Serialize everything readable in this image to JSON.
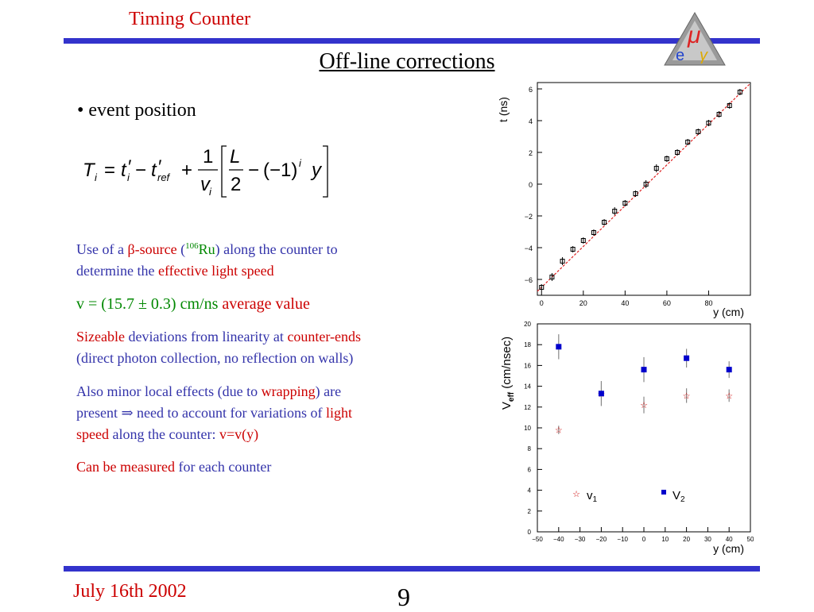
{
  "header": {
    "section_title": "Timing Counter",
    "logo_name": "meg-logo-icon"
  },
  "slide": {
    "title": "Off-line corrections",
    "bullet": "• event position",
    "formula": {
      "T": "T",
      "i": "i",
      "eq": "=",
      "t": "t",
      "prime": "′",
      "minus": "−",
      "ref": "ref",
      "plus": "+",
      "one": "1",
      "v": "v",
      "L": "L",
      "two": "2",
      "neg1": "(−1)",
      "y": "y"
    },
    "para1": {
      "a": "Use of a ",
      "b": "β-source",
      "c": " (",
      "d": "106",
      "e": "Ru",
      "f": ") along the counter to",
      "g": "determine the ",
      "h": "effective light speed"
    },
    "para2": {
      "a": "v = (15.7 ± 0.3) cm/ns  ",
      "b": "average value"
    },
    "para3": {
      "a": "Sizeable",
      "b": " deviations from linearity at ",
      "c": "counter-ends",
      "d": "(direct photon collection, no reflection on walls)"
    },
    "para4": {
      "a": "Also minor local effects (due to ",
      "b": "wrapping",
      "c": ") are",
      "d": "present ⇒ need to account for variations of ",
      "e": "light",
      "f": "speed",
      "g": " along the counter: ",
      "h": "v=v(y)"
    },
    "para5": {
      "a": "Can be measured",
      "b": " for each counter"
    }
  },
  "footer": {
    "date": "July 16th 2002",
    "page": "9"
  },
  "chart_data": [
    {
      "type": "scatter",
      "ylabel": "t (ns)",
      "xlabel": "y (cm)",
      "xlim": [
        -2,
        100
      ],
      "ylim": [
        -7,
        6.4
      ],
      "xticks": [
        0,
        20,
        40,
        60,
        80
      ],
      "yticks": [
        -6,
        -4,
        -2,
        0,
        2,
        4,
        6
      ],
      "ytick_labels": [
        "−6",
        "−4",
        "−2",
        "0",
        "2",
        "4",
        "6"
      ],
      "fit_line": {
        "x": [
          -2,
          100
        ],
        "y": [
          -6.75,
          6.35
        ],
        "color": "#dd2222"
      },
      "points": {
        "x": [
          0,
          5,
          10,
          15,
          20,
          25,
          30,
          35,
          40,
          45,
          50,
          55,
          60,
          65,
          70,
          75,
          80,
          85,
          90,
          95
        ],
        "y": [
          -6.5,
          -5.85,
          -4.85,
          -4.1,
          -3.55,
          -3.05,
          -2.4,
          -1.7,
          -1.2,
          -0.6,
          0.0,
          1.0,
          1.6,
          2.0,
          2.65,
          3.3,
          3.85,
          4.4,
          4.95,
          5.8
        ],
        "err": [
          0.2,
          0.25,
          0.25,
          0.2,
          0.2,
          0.2,
          0.2,
          0.25,
          0.2,
          0.2,
          0.25,
          0.25,
          0.2,
          0.2,
          0.2,
          0.2,
          0.2,
          0.2,
          0.2,
          0.2
        ]
      }
    },
    {
      "type": "scatter",
      "ylabel": "V_eff (cm/nsec)",
      "ylabel_main": "V",
      "ylabel_sub": "eff",
      "ylabel_rest": " (cm/nsec)",
      "xlabel": "y (cm)",
      "xlim": [
        -50,
        50
      ],
      "ylim": [
        0,
        20
      ],
      "xticks": [
        -50,
        -40,
        -30,
        -20,
        -10,
        0,
        10,
        20,
        30,
        40,
        50
      ],
      "xtick_labels": [
        "−50",
        "−40",
        "−30",
        "−20",
        "−10",
        "0",
        "10",
        "20",
        "30",
        "40",
        "50"
      ],
      "yticks": [
        0,
        2,
        4,
        6,
        8,
        10,
        12,
        14,
        16,
        18,
        20
      ],
      "series": [
        {
          "name": "v1",
          "name_main": "v",
          "name_sub": "1",
          "marker": "star",
          "color": "#cc0000",
          "x": [
            -40,
            -20,
            0,
            20,
            40
          ],
          "y": [
            9.8,
            13.3,
            12.2,
            13.1,
            13.1
          ],
          "err": [
            0.4,
            0.3,
            0.8,
            0.7,
            0.6
          ]
        },
        {
          "name": "V2",
          "name_main": "V",
          "name_sub": "2",
          "marker": "square",
          "color": "#0000cc",
          "x": [
            -40,
            -20,
            0,
            20,
            40
          ],
          "y": [
            17.8,
            13.3,
            15.6,
            16.7,
            15.6
          ],
          "err": [
            1.2,
            1.2,
            1.2,
            0.9,
            0.8
          ]
        }
      ]
    }
  ]
}
